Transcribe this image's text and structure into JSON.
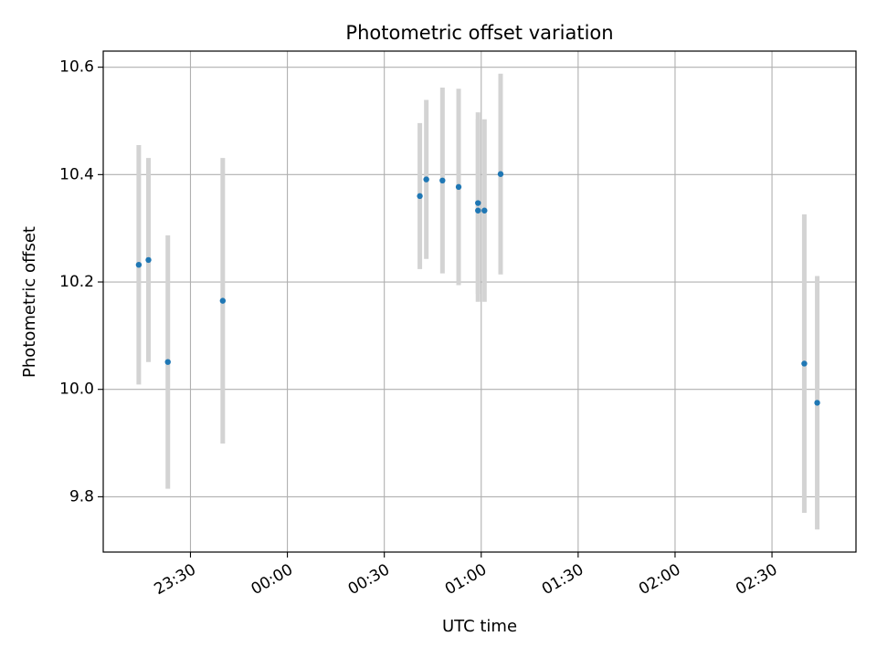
{
  "chart_data": {
    "type": "scatter",
    "title": "Photometric offset variation",
    "xlabel": "UTC time",
    "ylabel": "Photometric offset",
    "x_unit": "UTC time (hh:mm)",
    "xlim": [
      "23:03",
      "02:56"
    ],
    "ylim": [
      9.697,
      10.63
    ],
    "xticks": [
      "23:30",
      "00:00",
      "00:30",
      "01:00",
      "01:30",
      "02:00",
      "02:30"
    ],
    "yticks": [
      "9.8",
      "10.0",
      "10.2",
      "10.4",
      "10.6"
    ],
    "grid": true,
    "points": [
      {
        "x": "23:14",
        "y": 10.232,
        "err": 0.223
      },
      {
        "x": "23:17",
        "y": 10.241,
        "err": 0.19
      },
      {
        "x": "23:23",
        "y": 10.051,
        "err": 0.236
      },
      {
        "x": "23:40",
        "y": 10.165,
        "err": 0.266
      },
      {
        "x": "00:41",
        "y": 10.36,
        "err": 0.136
      },
      {
        "x": "00:43",
        "y": 10.391,
        "err": 0.148
      },
      {
        "x": "00:48",
        "y": 10.389,
        "err": 0.173
      },
      {
        "x": "00:53",
        "y": 10.377,
        "err": 0.183
      },
      {
        "x": "00:59",
        "y": 10.347,
        "err": 0.169
      },
      {
        "x": "00:59",
        "y": 10.333,
        "err": 0.17
      },
      {
        "x": "01:01",
        "y": 10.333,
        "err": 0.17
      },
      {
        "x": "01:06",
        "y": 10.401,
        "err": 0.187
      },
      {
        "x": "02:40",
        "y": 10.048,
        "err": 0.278
      },
      {
        "x": "02:44",
        "y": 9.975,
        "err": 0.236
      }
    ],
    "colors": {
      "marker": "#1f77b4",
      "errorbar": "#d3d3d3",
      "grid": "#b0b0b0"
    }
  }
}
